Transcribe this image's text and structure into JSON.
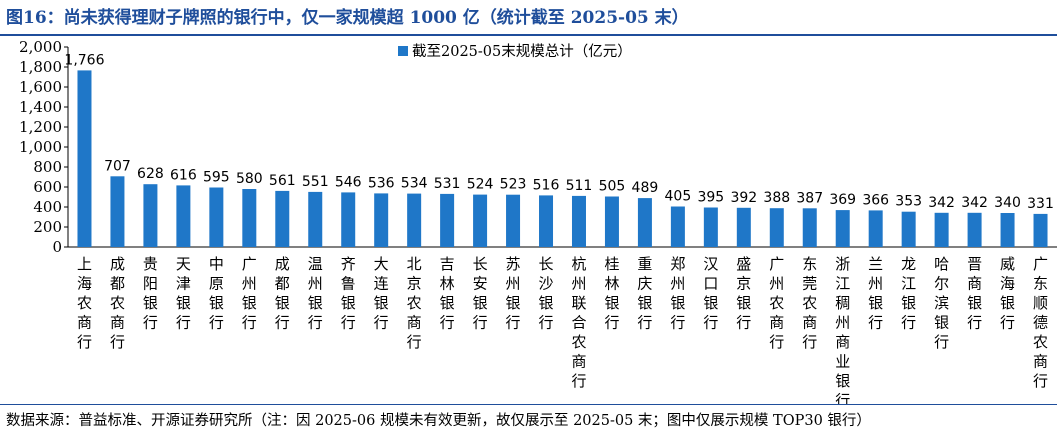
{
  "title": "图16：尚未获得理财子牌照的银行中，仅一家规模超 1000 亿（统计截至 2025-05 末）",
  "source": "数据来源：普益标准、开源证券研究所（注：因 2025-06 规模未有效更新，故仅展示至 2025-05 末；图中仅展示规模 TOP30 银行）",
  "colors": {
    "bar": "#1f77c8",
    "title": "#1f4e9b"
  },
  "chart_data": {
    "type": "bar",
    "categories": [
      "上海农商行",
      "成都农商行",
      "贵阳银行",
      "天津银行",
      "中原银行",
      "广州银行",
      "成都银行",
      "温州银行",
      "齐鲁银行",
      "大连银行",
      "北京农商行",
      "吉林银行",
      "长安银行",
      "苏州银行",
      "长沙银行",
      "杭州联合农商行",
      "桂林银行",
      "重庆银行",
      "郑州银行",
      "汉口银行",
      "盛京银行",
      "广州农商行",
      "东莞农商行",
      "浙江稠州商业银行",
      "兰州银行",
      "龙江银行",
      "哈尔滨银行",
      "晋商银行",
      "威海银行",
      "广东顺德农商行"
    ],
    "series": [
      {
        "name": "截至2025-05末规模总计（亿元）",
        "values": [
          1766,
          707,
          628,
          616,
          595,
          580,
          561,
          551,
          546,
          536,
          534,
          531,
          524,
          523,
          516,
          511,
          505,
          489,
          405,
          395,
          392,
          388,
          387,
          369,
          366,
          353,
          342,
          342,
          340,
          331
        ]
      }
    ],
    "data_labels": [
      "1,766",
      "707",
      "628",
      "616",
      "595",
      "580",
      "561",
      "551",
      "546",
      "536",
      "534",
      "531",
      "524",
      "523",
      "516",
      "511",
      "505",
      "489",
      "405",
      "395",
      "392",
      "388",
      "387",
      "369",
      "366",
      "353",
      "342",
      "342",
      "340",
      "331"
    ],
    "yticks": [
      "0",
      "200",
      "400",
      "600",
      "800",
      "1,000",
      "1,200",
      "1,400",
      "1,600",
      "1,800",
      "2,000"
    ],
    "ylim": [
      0,
      2000
    ],
    "legend": {
      "position": "top-center"
    },
    "grid": false
  }
}
